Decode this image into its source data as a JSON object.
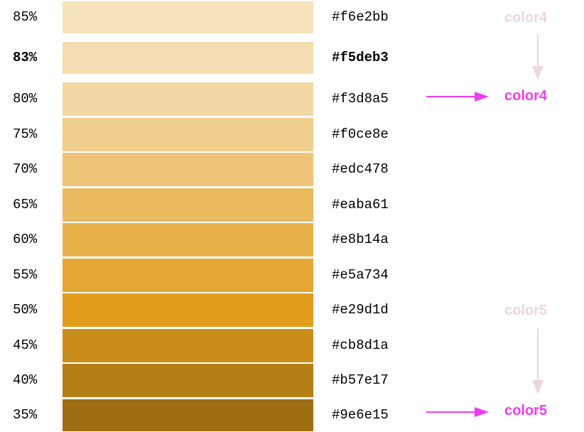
{
  "colors": {
    "magenta": "#f03cf0",
    "faded": "#ecd6e2"
  },
  "rows": [
    {
      "pct": "85%",
      "hex": "#f6e2bb",
      "bold": false
    },
    {
      "pct": "83%",
      "hex": "#f5deb3",
      "bold": true
    },
    {
      "pct": "80%",
      "hex": "#f3d8a5",
      "bold": false
    },
    {
      "pct": "75%",
      "hex": "#f0ce8e",
      "bold": false
    },
    {
      "pct": "70%",
      "hex": "#edc478",
      "bold": false
    },
    {
      "pct": "65%",
      "hex": "#eaba61",
      "bold": false
    },
    {
      "pct": "60%",
      "hex": "#e8b14a",
      "bold": false
    },
    {
      "pct": "55%",
      "hex": "#e5a734",
      "bold": false
    },
    {
      "pct": "50%",
      "hex": "#e29d1d",
      "bold": false
    },
    {
      "pct": "45%",
      "hex": "#cb8d1a",
      "bold": false
    },
    {
      "pct": "40%",
      "hex": "#b57e17",
      "bold": false
    },
    {
      "pct": "35%",
      "hex": "#9e6e15",
      "bold": false
    }
  ],
  "labels": {
    "color4_faded": "color4",
    "color4_active": "color4",
    "color5_faded": "color5",
    "color5_active": "color5"
  }
}
